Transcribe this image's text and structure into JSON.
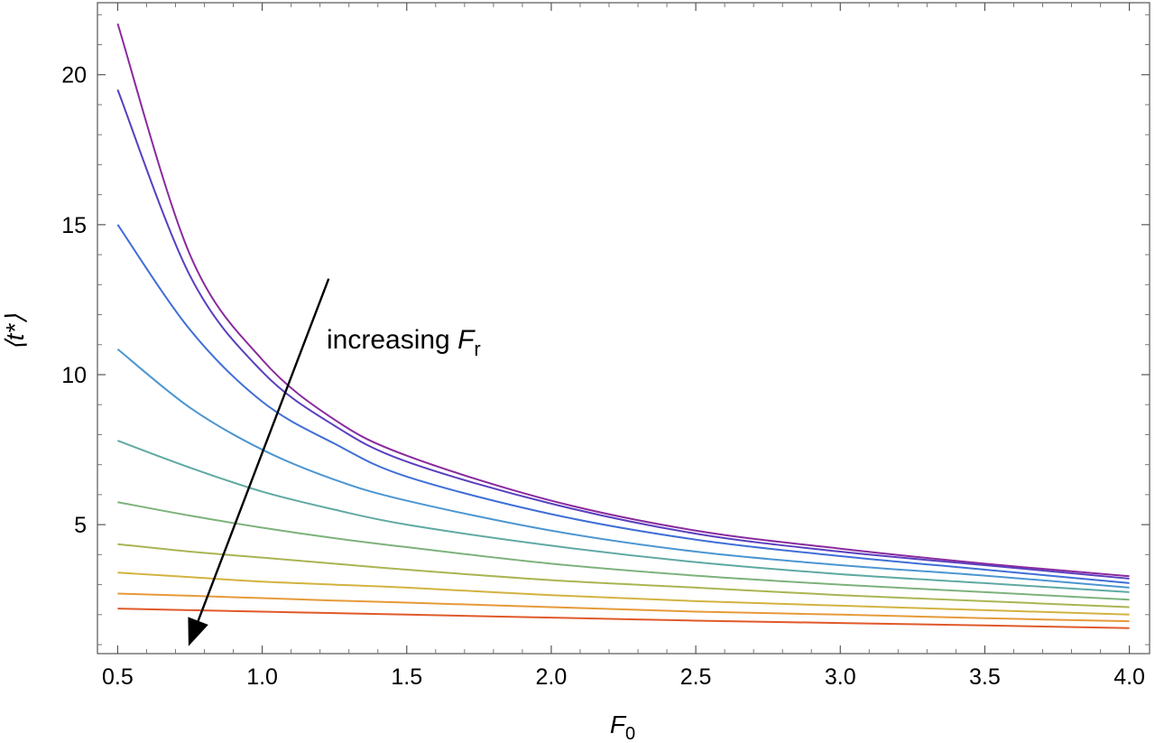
{
  "chart_data": {
    "type": "line",
    "xlabel": {
      "main": "F",
      "sub": "0"
    },
    "ylabel": "⟨t*⟩",
    "xlim": [
      0.43,
      4.07
    ],
    "ylim": [
      0.7,
      22.4
    ],
    "xticks": [
      "0.5",
      "1.0",
      "1.5",
      "2.0",
      "2.5",
      "3.0",
      "3.5",
      "4.0"
    ],
    "yticks": [
      "5",
      "10",
      "15",
      "20"
    ],
    "annotation": {
      "text": "increasing ",
      "var": "F",
      "sub": "r"
    },
    "arrow": {
      "from": [
        1.23,
        13.2
      ],
      "to": [
        0.745,
        0.95
      ]
    },
    "x": [
      0.5,
      0.75,
      1.0,
      1.25,
      1.5,
      2.0,
      2.5,
      3.0,
      3.5,
      4.0
    ],
    "series": [
      {
        "color": "#8a2a9e",
        "values": [
          21.7,
          14.0,
          10.5,
          8.5,
          7.3,
          5.8,
          4.8,
          4.2,
          3.7,
          3.28
        ]
      },
      {
        "color": "#5a3fbf",
        "values": [
          19.5,
          13.3,
          10.1,
          8.3,
          7.1,
          5.7,
          4.7,
          4.1,
          3.65,
          3.2
        ]
      },
      {
        "color": "#3f6fd6",
        "values": [
          15.0,
          11.5,
          9.1,
          7.7,
          6.6,
          5.35,
          4.5,
          3.95,
          3.5,
          3.05
        ]
      },
      {
        "color": "#4c96d1",
        "values": [
          10.85,
          8.9,
          7.5,
          6.5,
          5.8,
          4.8,
          4.1,
          3.65,
          3.3,
          2.9
        ]
      },
      {
        "color": "#5fa9a3",
        "values": [
          7.8,
          6.9,
          6.1,
          5.5,
          5.0,
          4.3,
          3.75,
          3.35,
          3.05,
          2.75
        ]
      },
      {
        "color": "#7db27b",
        "values": [
          5.75,
          5.3,
          4.9,
          4.55,
          4.25,
          3.7,
          3.3,
          3.0,
          2.75,
          2.5
        ]
      },
      {
        "color": "#aab552",
        "values": [
          4.35,
          4.1,
          3.9,
          3.7,
          3.5,
          3.15,
          2.9,
          2.65,
          2.45,
          2.25
        ]
      },
      {
        "color": "#d2b341",
        "values": [
          3.4,
          3.25,
          3.1,
          3.0,
          2.9,
          2.65,
          2.45,
          2.3,
          2.15,
          2.0
        ]
      },
      {
        "color": "#e69a39",
        "values": [
          2.7,
          2.63,
          2.55,
          2.47,
          2.4,
          2.25,
          2.1,
          2.0,
          1.88,
          1.78
        ]
      },
      {
        "color": "#e0592a",
        "values": [
          2.2,
          2.15,
          2.1,
          2.05,
          2.0,
          1.9,
          1.8,
          1.72,
          1.64,
          1.55
        ]
      }
    ]
  }
}
